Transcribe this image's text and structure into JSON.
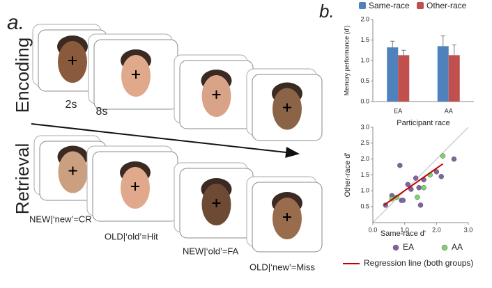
{
  "panel_a": {
    "label": "a.",
    "encoding": {
      "title": "Encoding",
      "durations": [
        "2s",
        "8s"
      ]
    },
    "retrieval": {
      "title": "Retrieval",
      "conditions": [
        "NEW|‘new’=CR",
        "OLD|‘old’=Hit",
        "NEW|‘old’=FA",
        "OLD|‘new’=Miss"
      ]
    }
  },
  "panel_b_label": "b.",
  "chart_data": [
    {
      "type": "bar",
      "ylabel": "Memory performance (d')",
      "xlabel": "Participant race",
      "categories": [
        "EA",
        "AA"
      ],
      "series": [
        {
          "name": "Same-race",
          "color": "#4f81bd",
          "values": [
            1.32,
            1.35
          ],
          "errors": [
            0.15,
            0.25
          ]
        },
        {
          "name": "Other-race",
          "color": "#c0504d",
          "values": [
            1.13,
            1.13
          ],
          "errors": [
            0.12,
            0.25
          ]
        }
      ],
      "ylim": [
        0,
        2.0
      ],
      "yticks": [
        {
          "value": 0,
          "label": "0.0"
        },
        {
          "value": 0.5,
          "label": "0.5"
        },
        {
          "value": 1,
          "label": "1.0"
        },
        {
          "value": 1.5,
          "label": "1.5"
        },
        {
          "value": 2,
          "label": "2.0"
        }
      ]
    },
    {
      "type": "scatter",
      "xlabel": "Same-race d'",
      "ylabel": "Other-race d'",
      "xlim": [
        0,
        3
      ],
      "ylim": [
        0,
        3
      ],
      "xticks": [
        {
          "value": 0,
          "label": "0.0"
        },
        {
          "value": 1,
          "label": "1.0"
        },
        {
          "value": 2,
          "label": "2.0"
        },
        {
          "value": 3,
          "label": "3.0"
        }
      ],
      "yticks": [
        {
          "value": 0.5,
          "label": "0.5"
        },
        {
          "value": 1,
          "label": "1.0"
        },
        {
          "value": 1.5,
          "label": "1.5"
        },
        {
          "value": 2,
          "label": "2.0"
        },
        {
          "value": 2.5,
          "label": "2.5"
        },
        {
          "value": 3,
          "label": "3.0"
        }
      ],
      "series": [
        {
          "name": "EA",
          "color": "#8064a2",
          "x": [
            0.4,
            0.6,
            0.85,
            0.9,
            0.95,
            1.1,
            1.2,
            1.35,
            1.45,
            1.5,
            1.6,
            2.0,
            2.15,
            2.55
          ],
          "y": [
            0.55,
            0.85,
            1.8,
            0.7,
            0.7,
            1.2,
            1.05,
            1.4,
            1.1,
            0.55,
            1.35,
            1.6,
            1.45,
            2.0
          ]
        },
        {
          "name": "AA",
          "color": "#7ed36b",
          "x": [
            0.6,
            0.75,
            1.4,
            1.6,
            1.8,
            2.2
          ],
          "y": [
            0.75,
            0.8,
            0.8,
            1.1,
            1.5,
            2.1
          ]
        },
        {
          "name": "Regression line (both groups)",
          "type": "line",
          "color": "#c00000",
          "x": [
            0.35,
            2.2
          ],
          "y": [
            0.55,
            1.85
          ]
        }
      ]
    }
  ]
}
